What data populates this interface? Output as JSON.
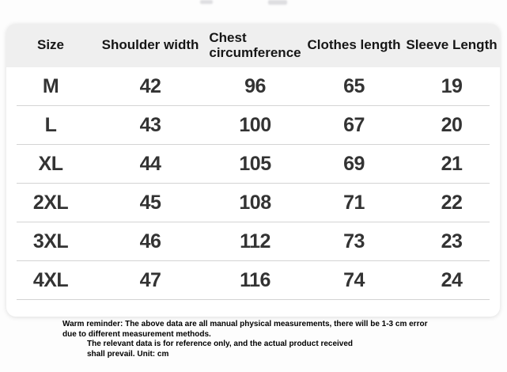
{
  "size_chart": {
    "header": {
      "size": "Size",
      "shoulder": "Shoulder width",
      "chest_line1": "Chest",
      "chest_line2": "circumference",
      "clothes": "Clothes length",
      "sleeve": "Sleeve Length"
    },
    "rows": [
      [
        "M",
        "42",
        "96",
        "65",
        "19"
      ],
      [
        "L",
        "43",
        "100",
        "67",
        "20"
      ],
      [
        "XL",
        "44",
        "105",
        "69",
        "21"
      ],
      [
        "2XL",
        "45",
        "108",
        "71",
        "22"
      ],
      [
        "3XL",
        "46",
        "112",
        "73",
        "23"
      ],
      [
        "4XL",
        "47",
        "116",
        "74",
        "24"
      ]
    ]
  },
  "note": {
    "line1": "Warm reminder: The above data are all manual physical measurements, there will be 1-3 cm error",
    "line2": "due to different measurement methods.",
    "line3": "The relevant data is for reference only, and the actual product received",
    "line4": "shall prevail. Unit: cm"
  },
  "chart_data": {
    "type": "table",
    "title": "Clothing size chart",
    "columns": [
      "Size",
      "Shoulder width",
      "Chest circumference",
      "Clothes length",
      "Sleeve Length"
    ],
    "rows": [
      [
        "M",
        42,
        96,
        65,
        19
      ],
      [
        "L",
        43,
        100,
        67,
        20
      ],
      [
        "XL",
        44,
        105,
        69,
        21
      ],
      [
        "2XL",
        45,
        108,
        71,
        22
      ],
      [
        "3XL",
        46,
        112,
        73,
        23
      ],
      [
        "4XL",
        47,
        116,
        74,
        24
      ]
    ],
    "unit": "cm",
    "notes": "Manual measurements, 1-3 cm error possible; data for reference only."
  },
  "colors": {
    "header_bg": "#efefef",
    "card_bg": "#ffffff",
    "page_bg": "#fdfdfd",
    "divider": "#d4d4d4",
    "header_text": "#161616",
    "data_text": "#333333",
    "note_text": "#000000"
  }
}
